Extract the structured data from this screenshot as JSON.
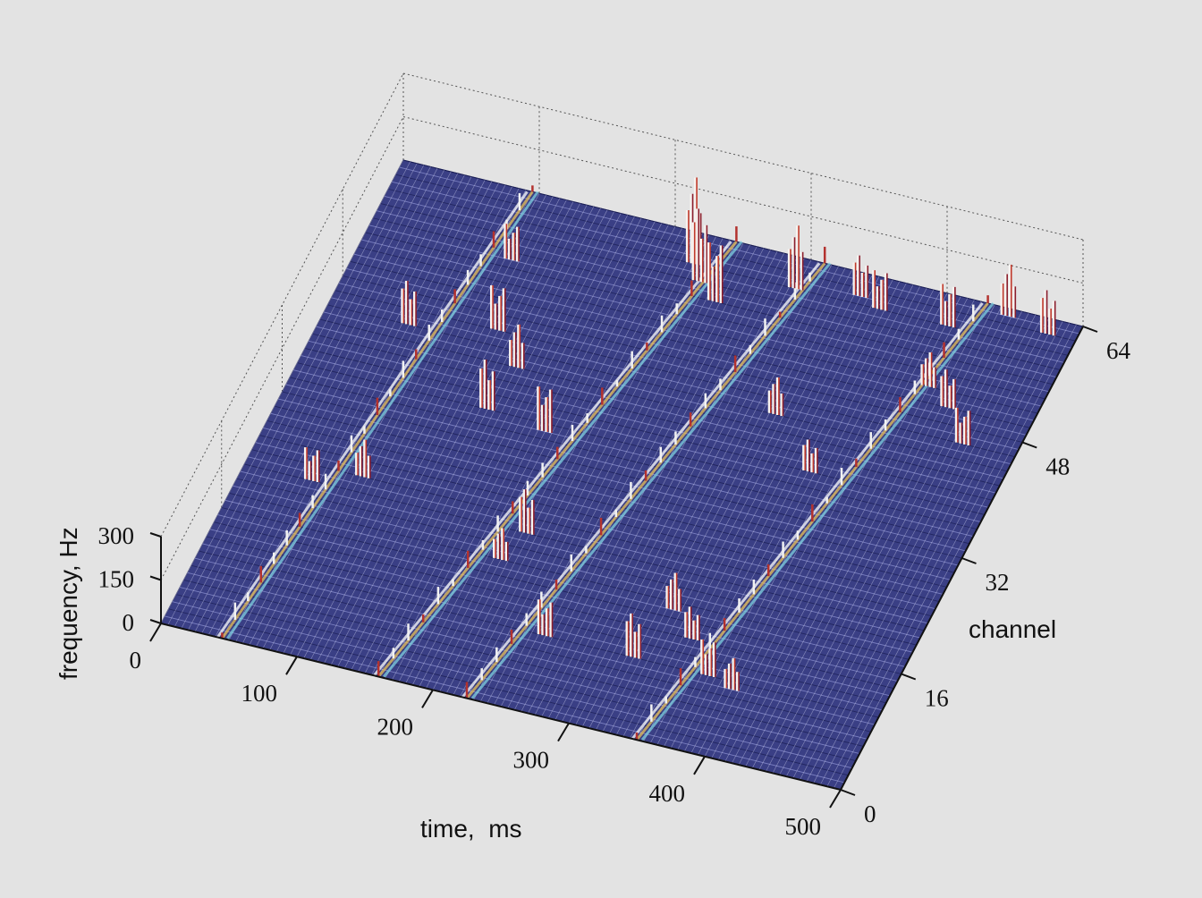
{
  "chart_data": {
    "type": "surface",
    "axes": {
      "x": {
        "label": "time,  ms",
        "ticks": [
          "0",
          "100",
          "200",
          "300",
          "400",
          "500"
        ],
        "range": [
          0,
          500
        ]
      },
      "y": {
        "label": "channel",
        "ticks": [
          "0",
          "16",
          "32",
          "48",
          "64"
        ],
        "range": [
          0,
          64
        ]
      },
      "z": {
        "label": "frequency, Hz",
        "ticks": [
          "0",
          "150",
          "300"
        ],
        "range": [
          0,
          300
        ]
      }
    },
    "grid": true,
    "colormap": "jet",
    "activity_bands": [
      {
        "time_start_ms": 45,
        "time_end_ms": 95
      },
      {
        "time_start_ms": 160,
        "time_end_ms": 245
      },
      {
        "time_start_ms": 225,
        "time_end_ms": 310
      },
      {
        "time_start_ms": 350,
        "time_end_ms": 430
      }
    ],
    "peaks": [
      {
        "time_ms": 225,
        "channel": 60,
        "frequency_hz": 300
      },
      {
        "time_ms": 235,
        "channel": 58,
        "frequency_hz": 250
      },
      {
        "time_ms": 252,
        "channel": 56,
        "frequency_hz": 200
      },
      {
        "time_ms": 300,
        "channel": 60,
        "frequency_hz": 220
      },
      {
        "time_ms": 345,
        "channel": 61,
        "frequency_hz": 140
      },
      {
        "time_ms": 362,
        "channel": 60,
        "frequency_hz": 130
      },
      {
        "time_ms": 448,
        "channel": 63,
        "frequency_hz": 180
      },
      {
        "time_ms": 480,
        "channel": 62,
        "frequency_hz": 150
      },
      {
        "time_ms": 120,
        "channel": 46,
        "frequency_hz": 150
      },
      {
        "time_ms": 145,
        "channel": 42,
        "frequency_hz": 150
      },
      {
        "time_ms": 140,
        "channel": 36,
        "frequency_hz": 170
      },
      {
        "time_ms": 185,
        "channel": 35,
        "frequency_hz": 150
      },
      {
        "time_ms": 330,
        "channel": 44,
        "frequency_hz": 130
      },
      {
        "time_ms": 372,
        "channel": 38,
        "frequency_hz": 110
      },
      {
        "time_ms": 412,
        "channel": 60,
        "frequency_hz": 140
      },
      {
        "time_ms": 420,
        "channel": 52,
        "frequency_hz": 120
      },
      {
        "time_ms": 440,
        "channel": 50,
        "frequency_hz": 130
      },
      {
        "time_ms": 462,
        "channel": 46,
        "frequency_hz": 120
      },
      {
        "time_ms": 330,
        "channel": 17,
        "frequency_hz": 130
      },
      {
        "time_ms": 352,
        "channel": 14,
        "frequency_hz": 110
      },
      {
        "time_ms": 375,
        "channel": 10,
        "frequency_hz": 120
      },
      {
        "time_ms": 395,
        "channel": 9,
        "frequency_hz": 110
      },
      {
        "time_ms": 320,
        "channel": 10,
        "frequency_hz": 150
      },
      {
        "time_ms": 255,
        "channel": 10,
        "frequency_hz": 120
      },
      {
        "time_ms": 200,
        "channel": 18,
        "frequency_hz": 110
      },
      {
        "time_ms": 208,
        "channel": 22,
        "frequency_hz": 150
      },
      {
        "time_ms": 50,
        "channel": 22,
        "frequency_hz": 110
      },
      {
        "time_ms": 82,
        "channel": 24,
        "frequency_hz": 130
      },
      {
        "time_ms": 60,
        "channel": 44,
        "frequency_hz": 150
      },
      {
        "time_ms": 105,
        "channel": 55,
        "frequency_hz": 120
      }
    ]
  }
}
